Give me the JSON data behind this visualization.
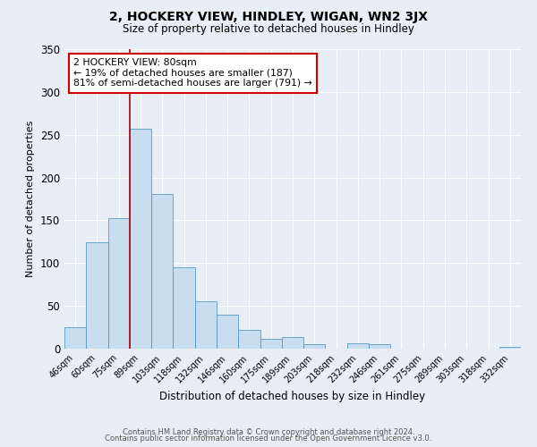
{
  "title": "2, HOCKERY VIEW, HINDLEY, WIGAN, WN2 3JX",
  "subtitle": "Size of property relative to detached houses in Hindley",
  "xlabel": "Distribution of detached houses by size in Hindley",
  "ylabel": "Number of detached properties",
  "bar_color": "#c8ddef",
  "bar_edge_color": "#5a9abf",
  "background_color": "#e8eef5",
  "plot_bg_color": "#e8eef5",
  "grid_color": "#ffffff",
  "categories": [
    "46sqm",
    "60sqm",
    "75sqm",
    "89sqm",
    "103sqm",
    "118sqm",
    "132sqm",
    "146sqm",
    "160sqm",
    "175sqm",
    "189sqm",
    "203sqm",
    "218sqm",
    "232sqm",
    "246sqm",
    "261sqm",
    "275sqm",
    "289sqm",
    "303sqm",
    "318sqm",
    "332sqm"
  ],
  "values": [
    25,
    124,
    153,
    257,
    181,
    95,
    55,
    40,
    22,
    12,
    14,
    5,
    0,
    6,
    5,
    0,
    0,
    0,
    0,
    0,
    2
  ],
  "ylim": [
    0,
    350
  ],
  "yticks": [
    0,
    50,
    100,
    150,
    200,
    250,
    300,
    350
  ],
  "marker_color": "#aa0000",
  "annotation_title": "2 HOCKERY VIEW: 80sqm",
  "annotation_line1": "← 19% of detached houses are smaller (187)",
  "annotation_line2": "81% of semi-detached houses are larger (791) →",
  "annotation_box_color": "#ffffff",
  "annotation_box_edge": "#cc0000",
  "footer_line1": "Contains HM Land Registry data © Crown copyright and database right 2024.",
  "footer_line2": "Contains public sector information licensed under the Open Government Licence v3.0."
}
